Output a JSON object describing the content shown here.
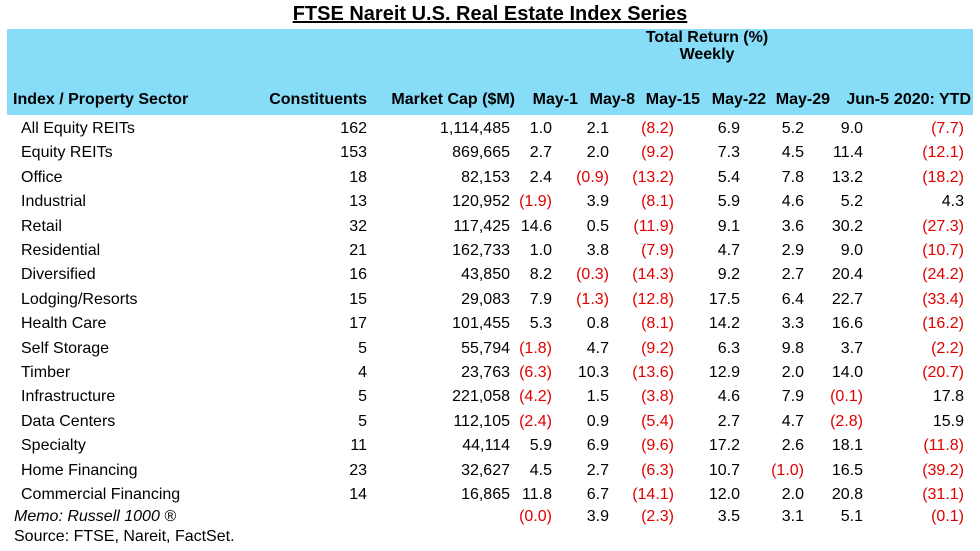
{
  "title": "FTSE Nareit U.S. Real Estate Index Series",
  "header": {
    "group_line1": "Total Return (%)",
    "group_line2": "Weekly",
    "columns": [
      "Index / Property Sector",
      "Constituents",
      "Market Cap ($M)",
      "May-1",
      "May-8",
      "May-15",
      "May-22",
      "May-29",
      "Jun-5",
      "2020: YTD"
    ]
  },
  "rows": [
    {
      "name": "All Equity REITs",
      "constituents": "162",
      "market_cap": "1,114,485",
      "returns": [
        "1.0",
        "2.1",
        "(8.2)",
        "6.9",
        "5.2",
        "9.0",
        "(7.7)"
      ]
    },
    {
      "name": "Equity REITs",
      "constituents": "153",
      "market_cap": "869,665",
      "returns": [
        "2.7",
        "2.0",
        "(9.2)",
        "7.3",
        "4.5",
        "11.4",
        "(12.1)"
      ]
    },
    {
      "name": "Office",
      "constituents": "18",
      "market_cap": "82,153",
      "returns": [
        "2.4",
        "(0.9)",
        "(13.2)",
        "5.4",
        "7.8",
        "13.2",
        "(18.2)"
      ]
    },
    {
      "name": "Industrial",
      "constituents": "13",
      "market_cap": "120,952",
      "returns": [
        "(1.9)",
        "3.9",
        "(8.1)",
        "5.9",
        "4.6",
        "5.2",
        "4.3"
      ]
    },
    {
      "name": "Retail",
      "constituents": "32",
      "market_cap": "117,425",
      "returns": [
        "14.6",
        "0.5",
        "(11.9)",
        "9.1",
        "3.6",
        "30.2",
        "(27.3)"
      ]
    },
    {
      "name": "Residential",
      "constituents": "21",
      "market_cap": "162,733",
      "returns": [
        "1.0",
        "3.8",
        "(7.9)",
        "4.7",
        "2.9",
        "9.0",
        "(10.7)"
      ]
    },
    {
      "name": "Diversified",
      "constituents": "16",
      "market_cap": "43,850",
      "returns": [
        "8.2",
        "(0.3)",
        "(14.3)",
        "9.2",
        "2.7",
        "20.4",
        "(24.2)"
      ]
    },
    {
      "name": "Lodging/Resorts",
      "constituents": "15",
      "market_cap": "29,083",
      "returns": [
        "7.9",
        "(1.3)",
        "(12.8)",
        "17.5",
        "6.4",
        "22.7",
        "(33.4)"
      ]
    },
    {
      "name": "Health Care",
      "constituents": "17",
      "market_cap": "101,455",
      "returns": [
        "5.3",
        "0.8",
        "(8.1)",
        "14.2",
        "3.3",
        "16.6",
        "(16.2)"
      ]
    },
    {
      "name": "Self Storage",
      "constituents": "5",
      "market_cap": "55,794",
      "returns": [
        "(1.8)",
        "4.7",
        "(9.2)",
        "6.3",
        "9.8",
        "3.7",
        "(2.2)"
      ]
    },
    {
      "name": "Timber",
      "constituents": "4",
      "market_cap": "23,763",
      "returns": [
        "(6.3)",
        "10.3",
        "(13.6)",
        "12.9",
        "2.0",
        "14.0",
        "(20.7)"
      ]
    },
    {
      "name": "Infrastructure",
      "constituents": "5",
      "market_cap": "221,058",
      "returns": [
        "(4.2)",
        "1.5",
        "(3.8)",
        "4.6",
        "7.9",
        "(0.1)",
        "17.8"
      ]
    },
    {
      "name": "Data Centers",
      "constituents": "5",
      "market_cap": "112,105",
      "returns": [
        "(2.4)",
        "0.9",
        "(5.4)",
        "2.7",
        "4.7",
        "(2.8)",
        "15.9"
      ]
    },
    {
      "name": "Specialty",
      "constituents": "11",
      "market_cap": "44,114",
      "returns": [
        "5.9",
        "6.9",
        "(9.6)",
        "17.2",
        "2.6",
        "18.1",
        "(11.8)"
      ]
    },
    {
      "name": "Home Financing",
      "constituents": "23",
      "market_cap": "32,627",
      "returns": [
        "4.5",
        "2.7",
        "(6.3)",
        "10.7",
        "(1.0)",
        "16.5",
        "(39.2)"
      ]
    },
    {
      "name": "Commercial Financing",
      "constituents": "14",
      "market_cap": "16,865",
      "returns": [
        "11.8",
        "6.7",
        "(14.1)",
        "12.0",
        "2.0",
        "20.8",
        "(31.1)"
      ]
    }
  ],
  "memo": {
    "name": "Memo: Russell 1000 ®",
    "returns": [
      "(0.0)",
      "3.9",
      "(2.3)",
      "3.5",
      "3.1",
      "5.1",
      "(0.1)"
    ]
  },
  "source": "Source: FTSE, Nareit, FactSet.",
  "colors": {
    "header_bg": "#87dcf7",
    "negative": "#e00000"
  }
}
